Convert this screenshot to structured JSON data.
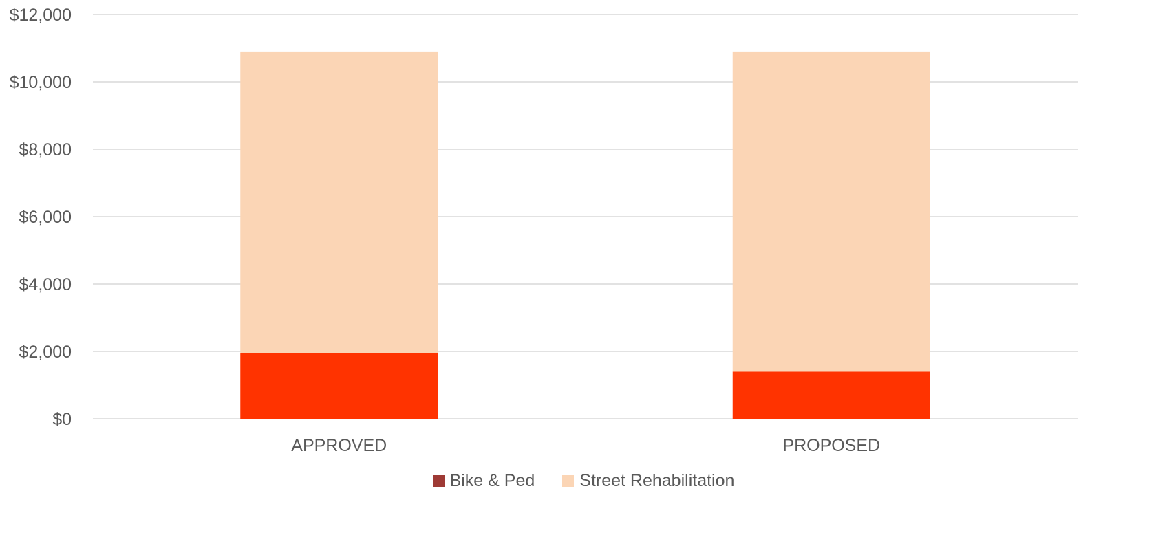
{
  "chart_data": {
    "type": "bar",
    "stacked": true,
    "categories": [
      "APPROVED",
      "PROPOSED"
    ],
    "series": [
      {
        "name": "Bike & Ped",
        "values": [
          1950,
          1400
        ],
        "color": "#FF3300",
        "legend_color": "#9E3A35"
      },
      {
        "name": "Street Rehabilitation",
        "values": [
          8950,
          9500
        ],
        "color": "#FBD5B5",
        "legend_color": "#FBD5B5"
      }
    ],
    "ylim": [
      0,
      12000
    ],
    "yticks": [
      0,
      2000,
      4000,
      6000,
      8000,
      10000,
      12000
    ],
    "ytick_labels": [
      "$0",
      "$2,000",
      "$4,000",
      "$6,000",
      "$8,000",
      "$10,000",
      "$12,000"
    ],
    "grid": true,
    "legend_position": "bottom",
    "gridline_color": "#D9D9D9"
  }
}
